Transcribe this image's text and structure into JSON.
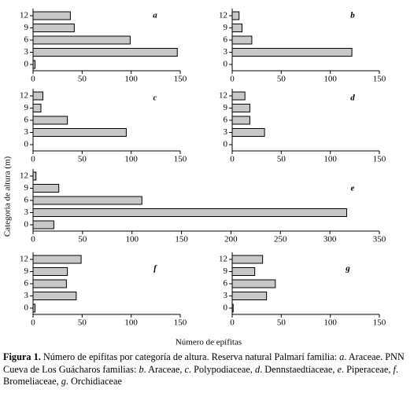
{
  "chart_data": [
    {
      "type": "bar",
      "orientation": "horizontal",
      "label": "a",
      "categories": [
        "0",
        "3",
        "6",
        "9",
        "12"
      ],
      "values": [
        2,
        147,
        99,
        42,
        38
      ],
      "xlim": [
        0,
        150
      ],
      "xticks": [
        0,
        50,
        100,
        150
      ],
      "color": "#c8c8c8"
    },
    {
      "type": "bar",
      "orientation": "horizontal",
      "label": "b",
      "categories": [
        "0",
        "3",
        "6",
        "9",
        "12"
      ],
      "values": [
        0,
        122,
        20,
        10,
        7
      ],
      "xlim": [
        0,
        150
      ],
      "xticks": [
        0,
        50,
        100,
        150
      ],
      "color": "#c8c8c8"
    },
    {
      "type": "bar",
      "orientation": "horizontal",
      "label": "c",
      "categories": [
        "0",
        "3",
        "6",
        "9",
        "12"
      ],
      "values": [
        0,
        95,
        35,
        8,
        10
      ],
      "xlim": [
        0,
        150
      ],
      "xticks": [
        0,
        50,
        100,
        150
      ],
      "color": "#c8c8c8"
    },
    {
      "type": "bar",
      "orientation": "horizontal",
      "label": "d",
      "categories": [
        "0",
        "3",
        "6",
        "9",
        "12"
      ],
      "values": [
        0,
        33,
        18,
        18,
        13
      ],
      "xlim": [
        0,
        150
      ],
      "xticks": [
        0,
        50,
        100,
        150
      ],
      "color": "#c8c8c8"
    },
    {
      "type": "bar",
      "orientation": "horizontal",
      "label": "e",
      "categories": [
        "0",
        "3",
        "6",
        "9",
        "12"
      ],
      "values": [
        21,
        317,
        110,
        26,
        3
      ],
      "xlim": [
        0,
        350
      ],
      "xticks": [
        0,
        50,
        100,
        150,
        200,
        250,
        300,
        350
      ],
      "color": "#c8c8c8"
    },
    {
      "type": "bar",
      "orientation": "horizontal",
      "label": "f",
      "categories": [
        "0",
        "3",
        "6",
        "9",
        "12"
      ],
      "values": [
        2,
        44,
        34,
        35,
        49
      ],
      "xlim": [
        0,
        150
      ],
      "xticks": [
        0,
        50,
        100,
        150
      ],
      "color": "#c8c8c8"
    },
    {
      "type": "bar",
      "orientation": "horizontal",
      "label": "g",
      "categories": [
        "0",
        "3",
        "6",
        "9",
        "12"
      ],
      "values": [
        1,
        35,
        44,
        23,
        31
      ],
      "xlim": [
        0,
        150
      ],
      "xticks": [
        0,
        50,
        100,
        150
      ],
      "color": "#c8c8c8"
    }
  ],
  "ylabel": "Categoria de altura (m)",
  "xlabel": "Número de epífitas",
  "caption": {
    "title": "Figura 1.",
    "parts": [
      {
        "text": " Número de epífitas por categoría de altura. Reserva natural Palmarí familia: "
      },
      {
        "text": "a",
        "italic": true
      },
      {
        "text": ". Araceae. PNN Cueva de Los Guácharos familias: "
      },
      {
        "text": "b",
        "italic": true
      },
      {
        "text": ". Araceae, "
      },
      {
        "text": "c",
        "italic": true
      },
      {
        "text": ". Polypodiaceae, "
      },
      {
        "text": "d",
        "italic": true
      },
      {
        "text": ". Dennstaedtiaceae, "
      },
      {
        "text": "e",
        "italic": true
      },
      {
        "text": ". Piperaceae, "
      },
      {
        "text": "f",
        "italic": true
      },
      {
        "text": ". Bromeliaceae, "
      },
      {
        "text": "g",
        "italic": true
      },
      {
        "text": ". Orchidiaceae"
      }
    ]
  }
}
